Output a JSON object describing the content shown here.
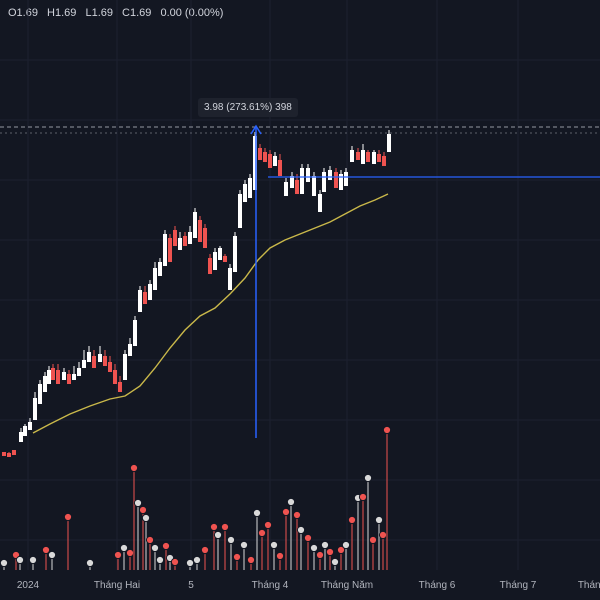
{
  "legend": {
    "open": "O1.69",
    "high": "H1.69",
    "low": "L1.69",
    "close": "C1.69",
    "change": "0.00 (0.00%)"
  },
  "measure_tooltip": "3.98 (273.61%) 398",
  "x_axis": {
    "labels": [
      "2024",
      "Tháng Hai",
      "5",
      "Tháng 4",
      "Tháng Năm",
      "Tháng 6",
      "Tháng 7",
      "Tháng"
    ]
  },
  "colors": {
    "background": "#131722",
    "up_candle": "#ffffff",
    "down_candle": "#ef5350",
    "moving_average": "#c9b84a",
    "measure_line": "#2962ff",
    "volume_marker": "#ef5350"
  },
  "chart_data": {
    "type": "candlestick",
    "price_series_visible": true,
    "volume_markers_visible": true,
    "moving_average_visible": true
  }
}
